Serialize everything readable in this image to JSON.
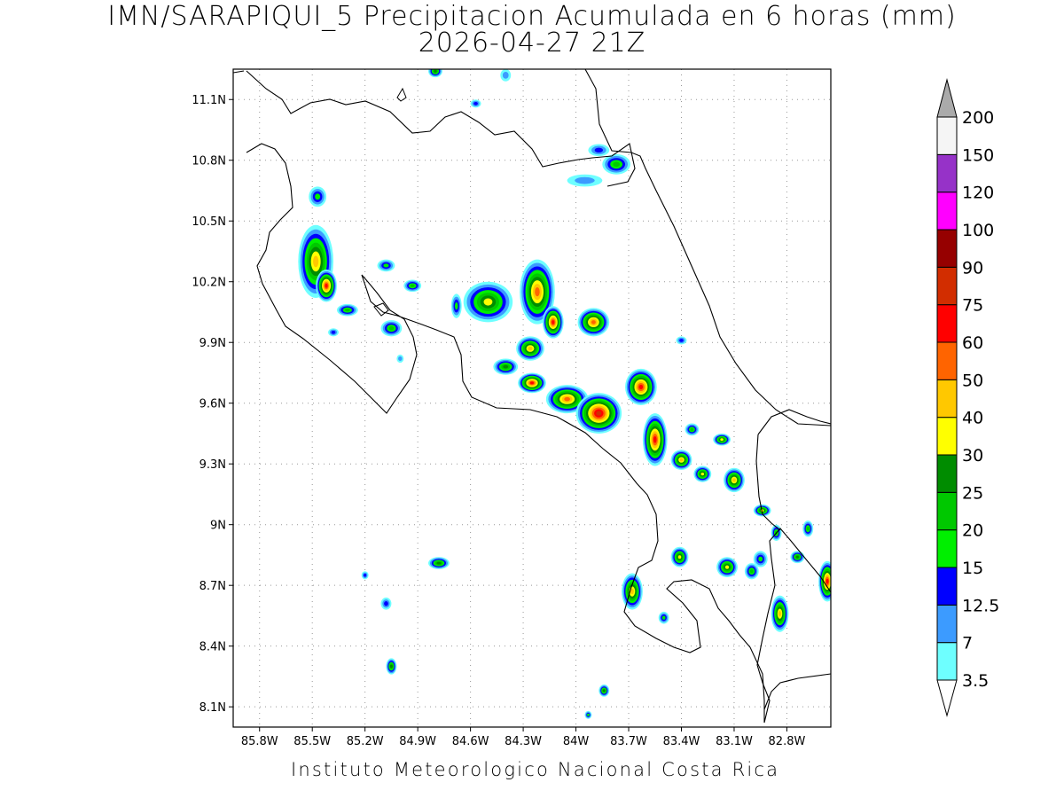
{
  "title_line1": "IMN/SARAPIQUI_5 Precipitacion Acumulada en 6 horas (mm)",
  "title_line2": "2026-04-27 21Z",
  "footer": "Instituto Meteorologico Nacional Costa Rica",
  "map_extent": {
    "lon_min": -85.95,
    "lon_max": -82.55,
    "lat_min": 8.0,
    "lat_max": 11.25
  },
  "lon_ticks": [
    {
      "value": -85.8,
      "label": "85.8W"
    },
    {
      "value": -85.5,
      "label": "85.5W"
    },
    {
      "value": -85.2,
      "label": "85.2W"
    },
    {
      "value": -84.9,
      "label": "84.9W"
    },
    {
      "value": -84.6,
      "label": "84.6W"
    },
    {
      "value": -84.3,
      "label": "84.3W"
    },
    {
      "value": -84.0,
      "label": "84W"
    },
    {
      "value": -83.7,
      "label": "83.7W"
    },
    {
      "value": -83.4,
      "label": "83.4W"
    },
    {
      "value": -83.1,
      "label": "83.1W"
    },
    {
      "value": -82.8,
      "label": "82.8W"
    }
  ],
  "lat_ticks": [
    {
      "value": 11.1,
      "label": "11.1N"
    },
    {
      "value": 10.8,
      "label": "10.8N"
    },
    {
      "value": 10.5,
      "label": "10.5N"
    },
    {
      "value": 10.2,
      "label": "10.2N"
    },
    {
      "value": 9.9,
      "label": "9.9N"
    },
    {
      "value": 9.6,
      "label": "9.6N"
    },
    {
      "value": 9.3,
      "label": "9.3N"
    },
    {
      "value": 9.0,
      "label": "9N"
    },
    {
      "value": 8.7,
      "label": "8.7N"
    },
    {
      "value": 8.4,
      "label": "8.4N"
    },
    {
      "value": 8.1,
      "label": "8.1N"
    }
  ],
  "colorbar": {
    "levels": [
      "3.5",
      "7",
      "12.5",
      "15",
      "20",
      "25",
      "30",
      "40",
      "50",
      "60",
      "75",
      "90",
      "100",
      "120",
      "150",
      "200"
    ],
    "colors": [
      "#6effff",
      "#3c9bff",
      "#0000ff",
      "#00ef00",
      "#00c800",
      "#008c00",
      "#ffff00",
      "#ffc800",
      "#ff6400",
      "#ff0000",
      "#d22d00",
      "#960000",
      "#ff00ff",
      "#9632c8",
      "#f5f5f5",
      "#aaaaaa"
    ]
  },
  "precip_cells": [
    {
      "lon": -85.48,
      "lat": 10.3,
      "rx": 0.1,
      "ry": 0.18,
      "level": 7
    },
    {
      "lon": -85.42,
      "lat": 10.18,
      "rx": 0.06,
      "ry": 0.08,
      "level": 9
    },
    {
      "lon": -85.47,
      "lat": 10.62,
      "rx": 0.05,
      "ry": 0.05,
      "level": 3
    },
    {
      "lon": -85.3,
      "lat": 10.06,
      "rx": 0.06,
      "ry": 0.03,
      "level": 4
    },
    {
      "lon": -85.05,
      "lat": 9.97,
      "rx": 0.06,
      "ry": 0.04,
      "level": 4
    },
    {
      "lon": -85.08,
      "lat": 10.28,
      "rx": 0.05,
      "ry": 0.03,
      "level": 3
    },
    {
      "lon": -84.93,
      "lat": 10.18,
      "rx": 0.05,
      "ry": 0.03,
      "level": 4
    },
    {
      "lon": -84.8,
      "lat": 11.24,
      "rx": 0.04,
      "ry": 0.03,
      "level": 5
    },
    {
      "lon": -84.57,
      "lat": 11.08,
      "rx": 0.03,
      "ry": 0.02,
      "level": 2
    },
    {
      "lon": -84.5,
      "lat": 10.1,
      "rx": 0.14,
      "ry": 0.1,
      "level": 6
    },
    {
      "lon": -84.22,
      "lat": 10.15,
      "rx": 0.1,
      "ry": 0.16,
      "level": 8
    },
    {
      "lon": -84.13,
      "lat": 10.0,
      "rx": 0.06,
      "ry": 0.08,
      "level": 9
    },
    {
      "lon": -83.9,
      "lat": 10.0,
      "rx": 0.09,
      "ry": 0.07,
      "level": 8
    },
    {
      "lon": -84.26,
      "lat": 9.87,
      "rx": 0.08,
      "ry": 0.06,
      "level": 7
    },
    {
      "lon": -84.25,
      "lat": 9.7,
      "rx": 0.08,
      "ry": 0.05,
      "level": 9
    },
    {
      "lon": -84.05,
      "lat": 9.62,
      "rx": 0.12,
      "ry": 0.07,
      "level": 8
    },
    {
      "lon": -83.87,
      "lat": 9.55,
      "rx": 0.13,
      "ry": 0.1,
      "level": 10
    },
    {
      "lon": -83.63,
      "lat": 9.68,
      "rx": 0.09,
      "ry": 0.09,
      "level": 9
    },
    {
      "lon": -83.55,
      "lat": 9.42,
      "rx": 0.07,
      "ry": 0.13,
      "level": 9
    },
    {
      "lon": -83.4,
      "lat": 9.32,
      "rx": 0.06,
      "ry": 0.05,
      "level": 7
    },
    {
      "lon": -84.4,
      "lat": 9.78,
      "rx": 0.07,
      "ry": 0.04,
      "level": 5
    },
    {
      "lon": -83.77,
      "lat": 10.78,
      "rx": 0.08,
      "ry": 0.05,
      "level": 4
    },
    {
      "lon": -83.87,
      "lat": 10.85,
      "rx": 0.06,
      "ry": 0.03,
      "level": 2
    },
    {
      "lon": -83.4,
      "lat": 9.91,
      "rx": 0.03,
      "ry": 0.02,
      "level": 2
    },
    {
      "lon": -83.34,
      "lat": 9.47,
      "rx": 0.04,
      "ry": 0.03,
      "level": 4
    },
    {
      "lon": -83.17,
      "lat": 9.42,
      "rx": 0.05,
      "ry": 0.03,
      "level": 6
    },
    {
      "lon": -83.28,
      "lat": 9.25,
      "rx": 0.05,
      "ry": 0.04,
      "level": 6
    },
    {
      "lon": -83.1,
      "lat": 9.22,
      "rx": 0.06,
      "ry": 0.06,
      "level": 7
    },
    {
      "lon": -82.94,
      "lat": 9.07,
      "rx": 0.05,
      "ry": 0.03,
      "level": 6
    },
    {
      "lon": -82.86,
      "lat": 8.96,
      "rx": 0.03,
      "ry": 0.04,
      "level": 4
    },
    {
      "lon": -82.95,
      "lat": 8.83,
      "rx": 0.04,
      "ry": 0.04,
      "level": 3
    },
    {
      "lon": -83.14,
      "lat": 8.79,
      "rx": 0.06,
      "ry": 0.05,
      "level": 6
    },
    {
      "lon": -83.0,
      "lat": 8.77,
      "rx": 0.04,
      "ry": 0.04,
      "level": 4
    },
    {
      "lon": -83.41,
      "lat": 8.84,
      "rx": 0.05,
      "ry": 0.05,
      "level": 6
    },
    {
      "lon": -83.68,
      "lat": 8.67,
      "rx": 0.06,
      "ry": 0.09,
      "level": 7
    },
    {
      "lon": -83.5,
      "lat": 8.54,
      "rx": 0.03,
      "ry": 0.03,
      "level": 3
    },
    {
      "lon": -82.84,
      "lat": 8.56,
      "rx": 0.05,
      "ry": 0.09,
      "level": 7
    },
    {
      "lon": -82.74,
      "lat": 8.84,
      "rx": 0.04,
      "ry": 0.03,
      "level": 5
    },
    {
      "lon": -82.68,
      "lat": 8.98,
      "rx": 0.03,
      "ry": 0.04,
      "level": 4
    },
    {
      "lon": -82.57,
      "lat": 8.72,
      "rx": 0.05,
      "ry": 0.1,
      "level": 9
    },
    {
      "lon": -84.78,
      "lat": 8.81,
      "rx": 0.06,
      "ry": 0.03,
      "level": 5
    },
    {
      "lon": -85.08,
      "lat": 8.61,
      "rx": 0.03,
      "ry": 0.03,
      "level": 2
    },
    {
      "lon": -85.2,
      "lat": 8.75,
      "rx": 0.02,
      "ry": 0.02,
      "level": 2
    },
    {
      "lon": -85.05,
      "lat": 8.3,
      "rx": 0.03,
      "ry": 0.04,
      "level": 5
    },
    {
      "lon": -83.84,
      "lat": 8.18,
      "rx": 0.03,
      "ry": 0.03,
      "level": 5
    },
    {
      "lon": -83.93,
      "lat": 8.06,
      "rx": 0.02,
      "ry": 0.02,
      "level": 3
    },
    {
      "lon": -85.38,
      "lat": 9.95,
      "rx": 0.03,
      "ry": 0.02,
      "level": 2
    },
    {
      "lon": -84.68,
      "lat": 10.08,
      "rx": 0.03,
      "ry": 0.06,
      "level": 3
    },
    {
      "lon": -83.95,
      "lat": 10.7,
      "rx": 0.1,
      "ry": 0.03,
      "level": 1
    },
    {
      "lon": -85.0,
      "lat": 9.82,
      "rx": 0.02,
      "ry": 0.02,
      "level": 1
    },
    {
      "lon": -84.4,
      "lat": 11.22,
      "rx": 0.03,
      "ry": 0.03,
      "level": 1
    }
  ]
}
